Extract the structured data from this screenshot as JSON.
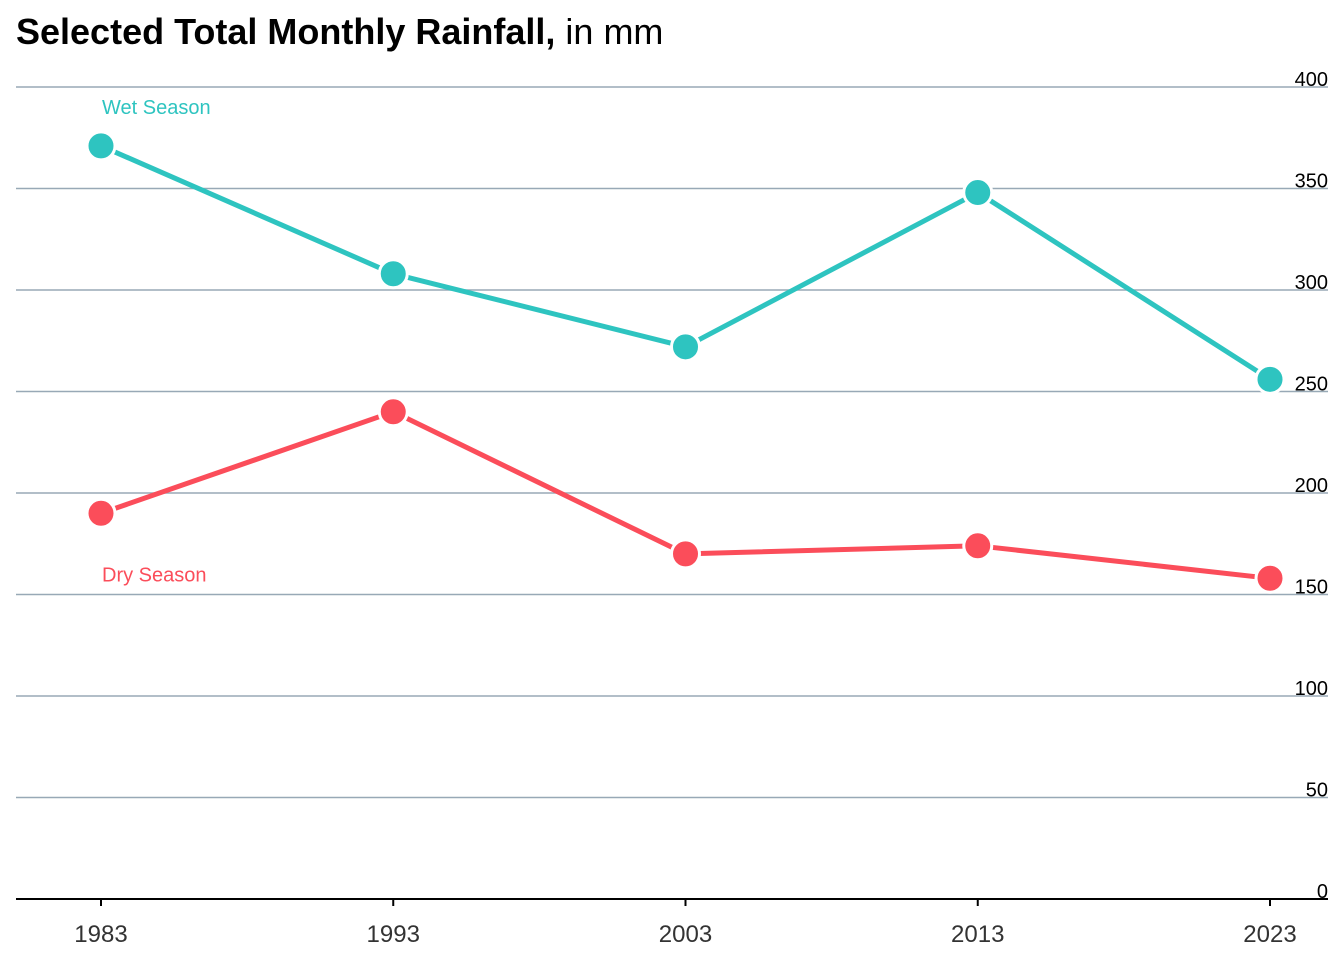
{
  "title": {
    "main": "Selected Total Monthly Rainfall,",
    "sub": "in mm"
  },
  "chart_data": {
    "type": "line",
    "x": [
      "1983",
      "1993",
      "2003",
      "2013",
      "2023"
    ],
    "ylim": [
      0,
      400
    ],
    "yticks": [
      0,
      50,
      100,
      150,
      200,
      250,
      300,
      350,
      400
    ],
    "grid": true,
    "legend": "direct labels on series",
    "series": [
      {
        "name": "Wet Season",
        "color": "#2ec4c0",
        "values": [
          371,
          308,
          272,
          348,
          256
        ]
      },
      {
        "name": "Dry Season",
        "color": "#fb4d5a",
        "values": [
          190,
          240,
          170,
          174,
          158
        ]
      }
    ]
  }
}
